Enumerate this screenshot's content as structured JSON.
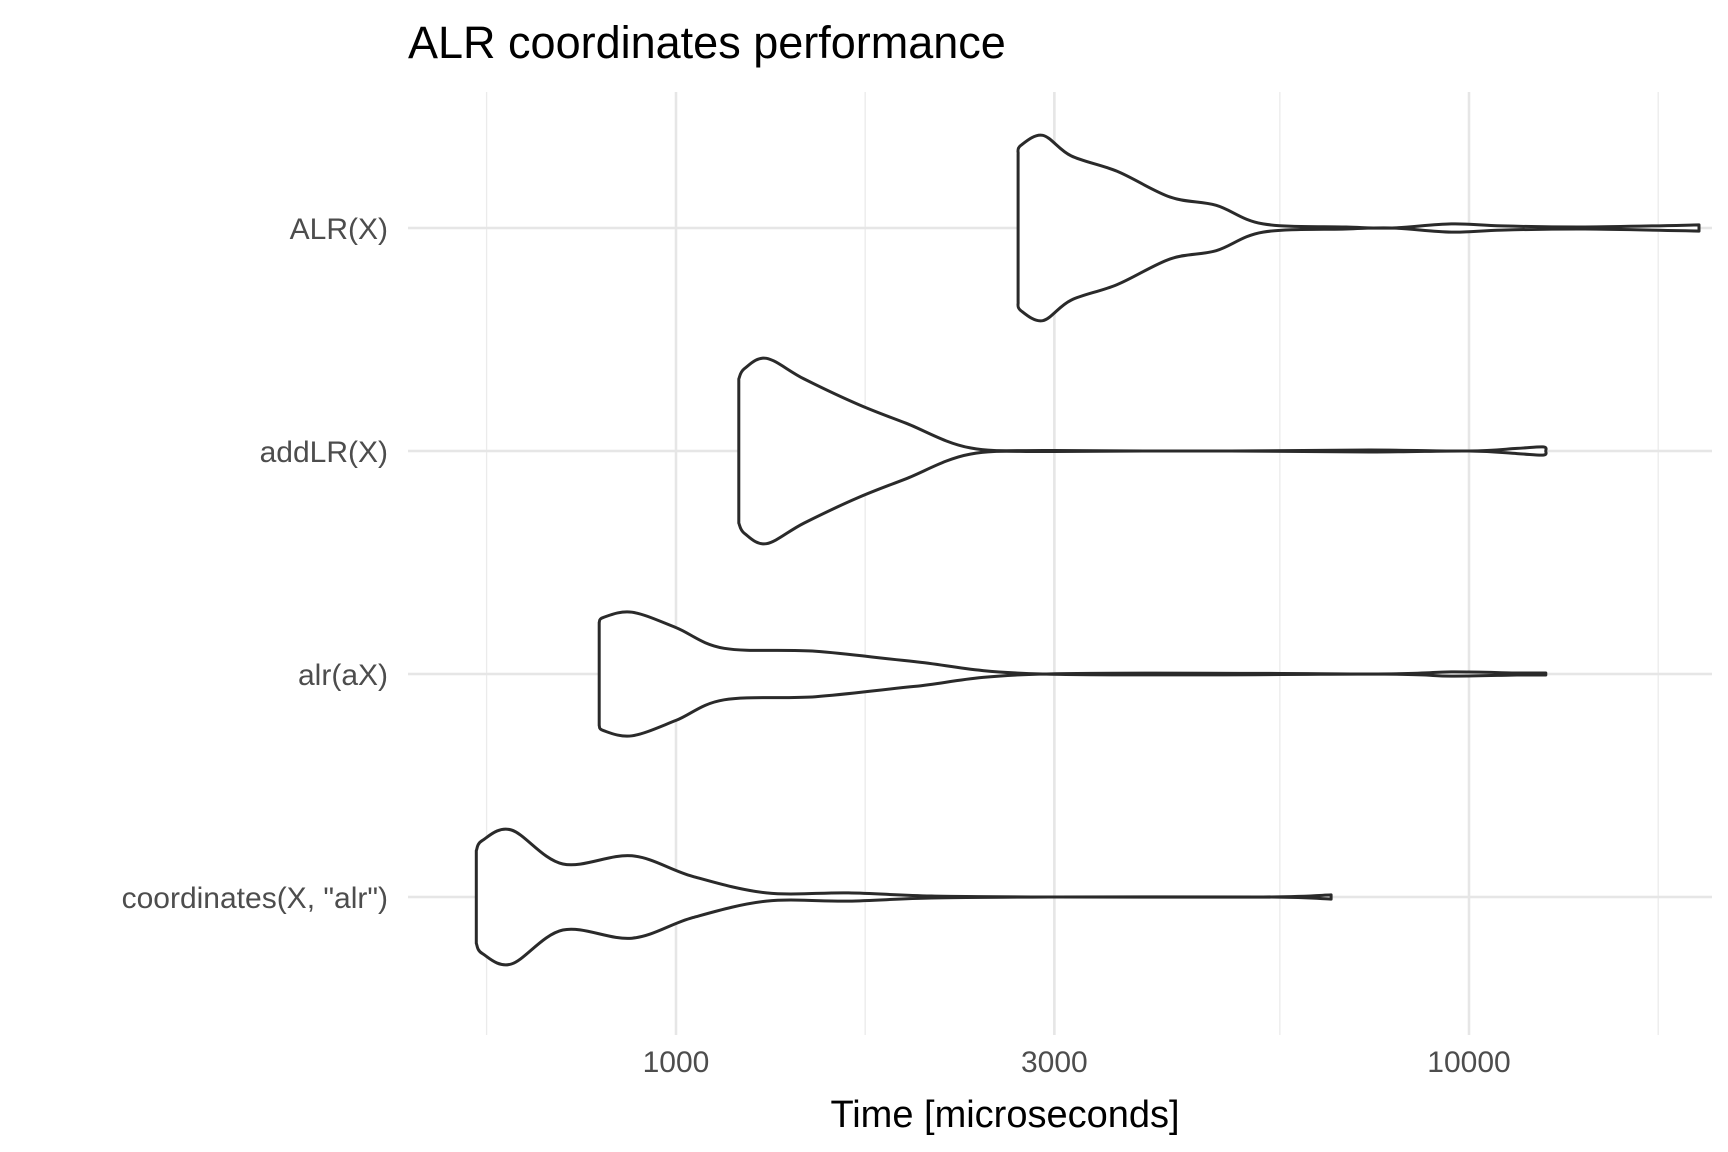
{
  "chart_data": {
    "type": "violin",
    "title": "ALR coordinates performance",
    "xlabel": "Time [microseconds]",
    "ylabel": "",
    "x_scale": "log10",
    "xlim": [
      520,
      20000
    ],
    "x_ticks": [
      1000,
      3000,
      10000
    ],
    "x_tick_labels": [
      "1000",
      "3000",
      "10000"
    ],
    "x_minor_gridlines": [
      577,
      1732,
      5774,
      17321
    ],
    "grid": true,
    "categories": [
      "ALR(X)",
      "addLR(X)",
      "alr(aX)",
      "coordinates(X, \"alr\")"
    ],
    "series": [
      {
        "name": "ALR(X)",
        "density": [
          [
            2700,
            0.72
          ],
          [
            2720,
            0.8
          ],
          [
            2900,
            0.9
          ],
          [
            3150,
            0.7
          ],
          [
            3600,
            0.55
          ],
          [
            4200,
            0.3
          ],
          [
            4800,
            0.22
          ],
          [
            5500,
            0.04
          ],
          [
            7000,
            0.01
          ],
          [
            8000,
            0.0
          ],
          [
            9500,
            0.04
          ],
          [
            11000,
            0.02
          ],
          [
            14000,
            0.01
          ],
          [
            19500,
            0.03
          ]
        ]
      },
      {
        "name": "addLR(X)",
        "density": [
          [
            1200,
            0.7
          ],
          [
            1220,
            0.8
          ],
          [
            1300,
            0.9
          ],
          [
            1450,
            0.7
          ],
          [
            1700,
            0.45
          ],
          [
            1950,
            0.27
          ],
          [
            2350,
            0.03
          ],
          [
            3000,
            0.005
          ],
          [
            5000,
            0.0
          ],
          [
            7500,
            0.01
          ],
          [
            10000,
            0.0
          ],
          [
            11500,
            0.025
          ],
          [
            12400,
            0.04
          ],
          [
            12500,
            0.0
          ]
        ]
      },
      {
        "name": "alr(aX)",
        "density": [
          [
            800,
            0.5
          ],
          [
            810,
            0.55
          ],
          [
            880,
            0.6
          ],
          [
            1000,
            0.45
          ],
          [
            1150,
            0.25
          ],
          [
            1500,
            0.22
          ],
          [
            2000,
            0.12
          ],
          [
            2900,
            0.0
          ],
          [
            7500,
            0.0
          ],
          [
            9500,
            0.02
          ],
          [
            11500,
            0.01
          ],
          [
            12500,
            0.01
          ]
        ]
      },
      {
        "name": "coordinates(X, \"alr\")",
        "density": [
          [
            560,
            0.45
          ],
          [
            570,
            0.55
          ],
          [
            620,
            0.65
          ],
          [
            720,
            0.32
          ],
          [
            880,
            0.4
          ],
          [
            1050,
            0.2
          ],
          [
            1300,
            0.04
          ],
          [
            1650,
            0.04
          ],
          [
            2100,
            0.01
          ],
          [
            3000,
            0.0
          ],
          [
            5500,
            0.0
          ],
          [
            6700,
            0.02
          ]
        ]
      }
    ]
  }
}
